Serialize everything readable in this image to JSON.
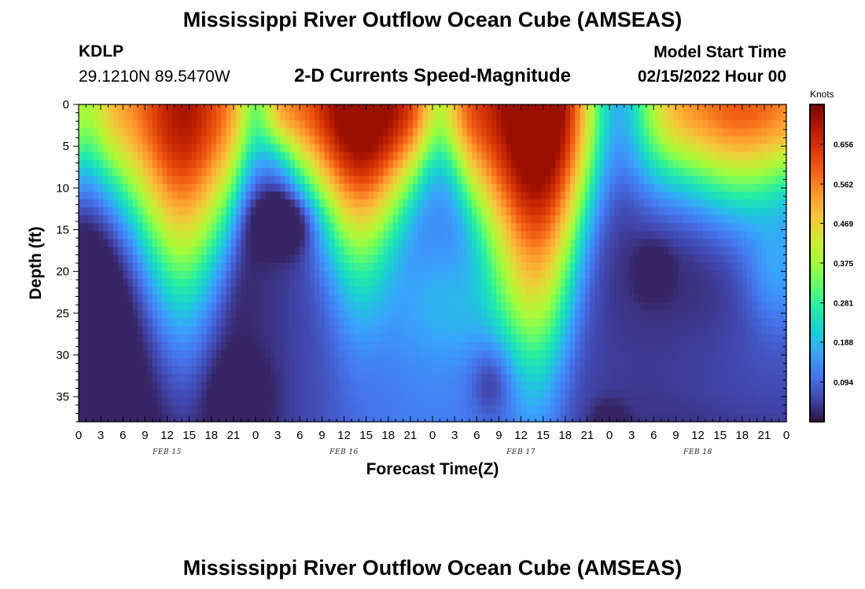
{
  "header": {
    "title": "Mississippi River Outflow Ocean Cube (AMSEAS)",
    "station_id": "KDLP",
    "station_coords": "29.1210N  89.5470W",
    "subtitle": "2-D Currents Speed-Magnitude",
    "model_start_label": "Model Start Time",
    "model_start_value": "02/15/2022 Hour 00"
  },
  "footer": {
    "title": "Mississippi River Outflow Ocean Cube (AMSEAS)"
  },
  "colorbar": {
    "unit": "Knots",
    "ticks": [
      0.094,
      0.188,
      0.281,
      0.375,
      0.469,
      0.562,
      0.656
    ],
    "range": [
      0,
      0.75
    ],
    "colormap": [
      "#30123b",
      "#4145ab",
      "#4675ed",
      "#39a2fc",
      "#1bcfd4",
      "#24eca6",
      "#61fc6c",
      "#a4fc3b",
      "#d1e834",
      "#f3c63a",
      "#fe9b2d",
      "#f36315",
      "#d93806",
      "#b11901",
      "#7a0402"
    ]
  },
  "chart_data": {
    "type": "heatmap",
    "title": "2-D Currents Speed-Magnitude",
    "xlabel": "Forecast Time(Z)",
    "ylabel": "Depth (ft)",
    "x_ticks": [
      "0",
      "3",
      "6",
      "9",
      "12",
      "15",
      "18",
      "21",
      "0",
      "3",
      "6",
      "9",
      "12",
      "15",
      "18",
      "21",
      "0",
      "3",
      "6",
      "9",
      "12",
      "15",
      "18",
      "21",
      "0",
      "3",
      "6",
      "9",
      "12",
      "15",
      "18",
      "21",
      "0"
    ],
    "x_day_labels": [
      "FEB 15",
      "FEB 16",
      "FEB 17",
      "FEB 18"
    ],
    "xlim_hours": [
      0,
      96
    ],
    "y_ticks": [
      0,
      5,
      10,
      15,
      20,
      25,
      30,
      35
    ],
    "ylim_ft": [
      0,
      38
    ],
    "y_inverted": true,
    "value_unit": "Knots",
    "surface_maxima_hours": [
      14,
      38,
      62,
      90
    ],
    "slack_water_hours": [
      1,
      24,
      49,
      73
    ],
    "max_speed_knots": 0.72,
    "min_speed_knots": 0.02
  }
}
